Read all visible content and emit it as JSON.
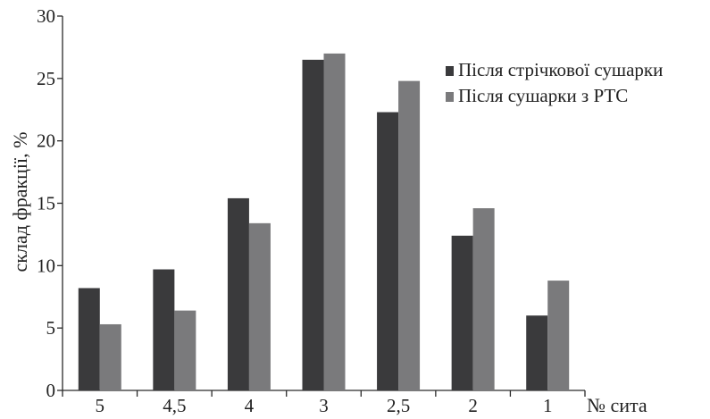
{
  "chart_data": {
    "type": "bar",
    "title": "",
    "xlabel": "№ сита",
    "ylabel": "склад фракції, %",
    "ylim": [
      0,
      30
    ],
    "yticks": [
      "0",
      "5",
      "10",
      "15",
      "20",
      "25",
      "30"
    ],
    "categories": [
      "5",
      "4,5",
      "4",
      "3",
      "2,5",
      "2",
      "1"
    ],
    "series": [
      {
        "name": "Після стрічкової сушарки",
        "color": "#3a3a3c",
        "values": [
          8.2,
          9.7,
          15.4,
          26.5,
          22.3,
          12.4,
          6.0
        ]
      },
      {
        "name": "Після сушарки з РТС",
        "color": "#7a7a7c",
        "values": [
          5.3,
          6.4,
          13.4,
          27.0,
          24.8,
          14.6,
          8.8
        ]
      }
    ],
    "grid": false,
    "legend_position": "top-right"
  }
}
